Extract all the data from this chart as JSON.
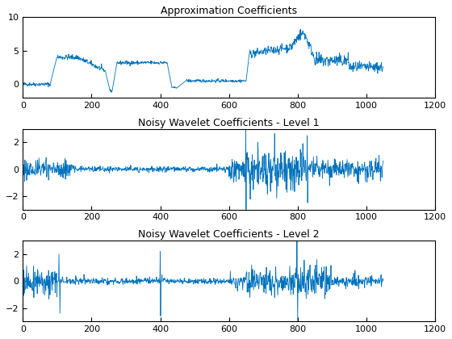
{
  "title1": "Approximation Coefficients",
  "title2": "Noisy Wavelet Coefficients - Level 1",
  "title3": "Noisy Wavelet Coefficients - Level 2",
  "line_color": "#0072BD",
  "xlim": [
    0,
    1200
  ],
  "ylim1": [
    -2,
    10
  ],
  "ylim2": [
    -3,
    3
  ],
  "ylim3": [
    -3,
    3
  ],
  "yticks1": [
    0,
    5,
    10
  ],
  "yticks2": [
    -2,
    0,
    2
  ],
  "yticks3": [
    -2,
    0,
    2
  ],
  "xticks": [
    0,
    200,
    400,
    600,
    800,
    1000,
    1200
  ],
  "figsize": [
    5.6,
    4.2
  ],
  "dpi": 100
}
